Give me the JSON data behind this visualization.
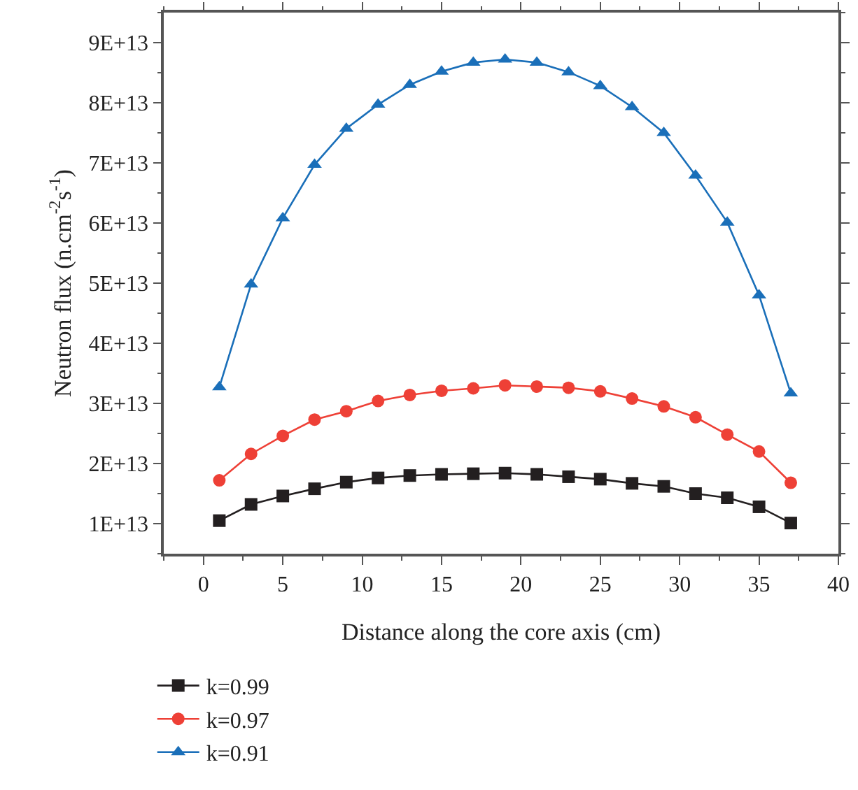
{
  "chart_data": {
    "type": "line",
    "xlabel": "Distance along the core axis (cm)",
    "ylabel": "Neutron flux (n.cm$^{-2}$s$^{-1}$)",
    "x": [
      1,
      3,
      5,
      7,
      9,
      11,
      13,
      15,
      17,
      19,
      21,
      23,
      25,
      27,
      29,
      31,
      33,
      35,
      37
    ],
    "series": [
      {
        "name": "k=0.99",
        "color": "#231f20",
        "marker": "square",
        "values": [
          10500000000000.0,
          13200000000000.0,
          14600000000000.0,
          15800000000000.0,
          16900000000000.0,
          17600000000000.0,
          18000000000000.0,
          18200000000000.0,
          18300000000000.0,
          18400000000000.0,
          18200000000000.0,
          17800000000000.0,
          17400000000000.0,
          16700000000000.0,
          16200000000000.0,
          15000000000000.0,
          14300000000000.0,
          12800000000000.0,
          10100000000000.0
        ]
      },
      {
        "name": "k=0.97",
        "color": "#ee4036",
        "marker": "circle",
        "values": [
          17200000000000.0,
          21600000000000.0,
          24600000000000.0,
          27300000000000.0,
          28700000000000.0,
          30400000000000.0,
          31400000000000.0,
          32100000000000.0,
          32500000000000.0,
          33000000000000.0,
          32800000000000.0,
          32600000000000.0,
          32000000000000.0,
          30800000000000.0,
          29500000000000.0,
          27700000000000.0,
          24800000000000.0,
          22000000000000.0,
          16800000000000.0
        ]
      },
      {
        "name": "k=0.91",
        "color": "#1a6fb9",
        "marker": "triangle",
        "values": [
          32700000000000.0,
          49800000000000.0,
          60800000000000.0,
          69700000000000.0,
          75700000000000.0,
          79700000000000.0,
          83000000000000.0,
          85200000000000.0,
          86700000000000.0,
          87200000000000.0,
          86700000000000.0,
          85100000000000.0,
          82800000000000.0,
          79300000000000.0,
          75000000000000.0,
          67900000000000.0,
          60100000000000.0,
          48000000000000.0,
          31700000000000.0
        ]
      }
    ],
    "xlim": [
      -2.5,
      40
    ],
    "xticks": [
      0,
      5,
      10,
      15,
      20,
      25,
      30,
      35,
      40
    ],
    "ylim": [
      5000000000000.0,
      95000000000000.0
    ],
    "yticks": [
      {
        "value": 10000000000000.0,
        "label": "1E+13"
      },
      {
        "value": 20000000000000.0,
        "label": "2E+13"
      },
      {
        "value": 30000000000000.0,
        "label": "3E+13"
      },
      {
        "value": 40000000000000.0,
        "label": "4E+13"
      },
      {
        "value": 50000000000000.0,
        "label": "5E+13"
      },
      {
        "value": 60000000000000.0,
        "label": "6E+13"
      },
      {
        "value": 70000000000000.0,
        "label": "7E+13"
      },
      {
        "value": 80000000000000.0,
        "label": "8E+13"
      },
      {
        "value": 90000000000000.0,
        "label": "9E+13"
      }
    ],
    "grid": false,
    "legend": "bottom left",
    "line_style": "solid"
  }
}
